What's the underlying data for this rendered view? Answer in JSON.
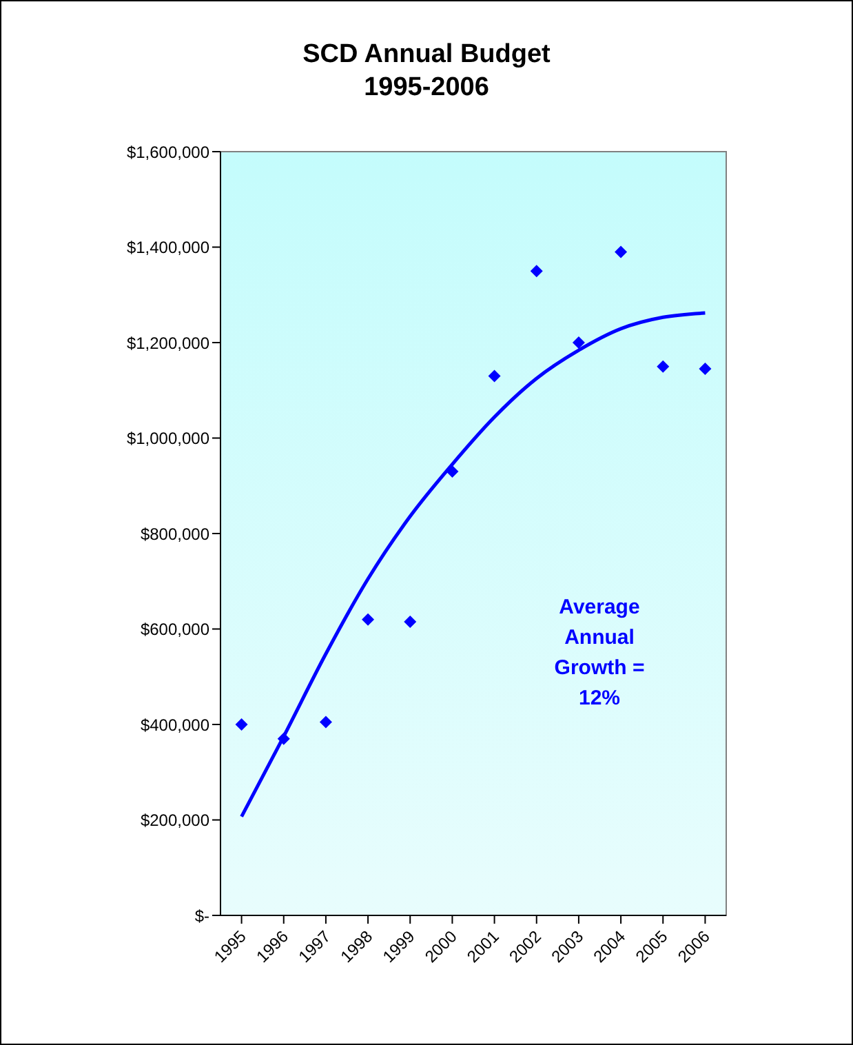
{
  "chart_data": {
    "type": "scatter",
    "title": "SCD Annual Budget",
    "subtitle": "1995-2006",
    "categories": [
      "1995",
      "1996",
      "1997",
      "1998",
      "1999",
      "2000",
      "2001",
      "2002",
      "2003",
      "2004",
      "2005",
      "2006"
    ],
    "series": [
      {
        "color": "#0000ff",
        "marker": "diamond",
        "values": [
          400000,
          370000,
          405000,
          620000,
          615000,
          930000,
          1130000,
          1350000,
          1200000,
          1390000,
          1150000,
          1145000
        ]
      },
      {
        "type": "line",
        "color": "#0000ff",
        "marker": "none",
        "values": [
          207000,
          375000,
          548000,
          705000,
          836000,
          945000,
          1044000,
          1125000,
          1184000,
          1229000,
          1253000,
          1262000
        ]
      }
    ],
    "ylim": [
      0,
      1600000
    ],
    "yticks": [
      {
        "value": 0,
        "label": "$-"
      },
      {
        "value": 200000,
        "label": "$200,000"
      },
      {
        "value": 400000,
        "label": "$400,000"
      },
      {
        "value": 600000,
        "label": "$600,000"
      },
      {
        "value": 800000,
        "label": "$800,000"
      },
      {
        "value": 1000000,
        "label": "$1,000,000"
      },
      {
        "value": 1200000,
        "label": "$1,200,000"
      },
      {
        "value": 1400000,
        "label": "$1,400,000"
      },
      {
        "value": 1600000,
        "label": "$1,600,000"
      }
    ],
    "annotations": [
      "Average Annual Growth = 12%"
    ],
    "grid": false,
    "legend": false
  }
}
